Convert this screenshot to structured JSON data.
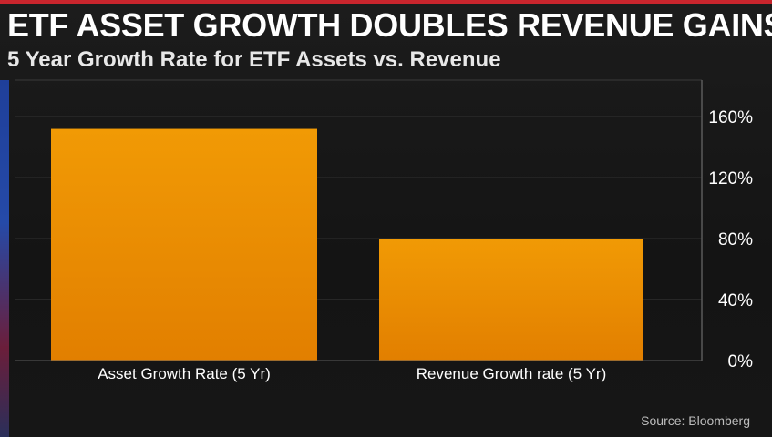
{
  "chart_data": {
    "type": "bar",
    "title": "ETF ASSET GROWTH DOUBLES REVENUE GAINS",
    "subtitle": "5 Year Growth Rate for ETF Assets vs. Revenue",
    "categories": [
      "Asset Growth Rate (5 Yr)",
      "Revenue Growth rate (5 Yr)"
    ],
    "values": [
      152,
      80
    ],
    "unit": "%",
    "xlabel": "",
    "ylabel": "",
    "ylim": [
      0,
      184
    ],
    "yticks": [
      0,
      40,
      80,
      120,
      160
    ],
    "ytick_labels": [
      "0%",
      "40%",
      "80%",
      "120%",
      "160%"
    ],
    "grid": true,
    "y_axis_side": "right",
    "bar_color_top": "#f19a05",
    "bar_color_bottom": "#e27f00",
    "source": "Source: Bloomberg"
  }
}
